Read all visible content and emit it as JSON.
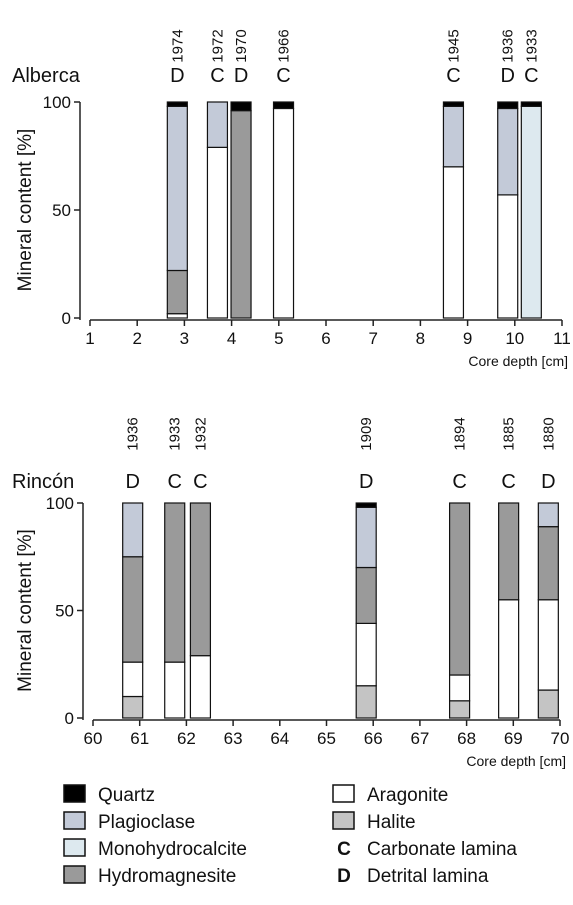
{
  "legend": {
    "items": [
      {
        "key": "quartz",
        "label": "Quartz",
        "color": "#000000"
      },
      {
        "key": "plagioclase",
        "label": "Plagioclase",
        "color": "#c3cad8"
      },
      {
        "key": "monohydrocalcite",
        "label": "Monohydrocalcite",
        "color": "#dde9ef"
      },
      {
        "key": "hydromagnesite",
        "label": "Hydromagnesite",
        "color": "#9a9a9a"
      },
      {
        "key": "aragonite",
        "label": "Aragonite",
        "color": "#ffffff"
      },
      {
        "key": "halite",
        "label": "Halite",
        "color": "#c4c4c4"
      }
    ],
    "lamina": [
      {
        "symbol": "C",
        "label": "Carbonate lamina"
      },
      {
        "symbol": "D",
        "label": "Detrital lamina"
      }
    ]
  },
  "chart_data": [
    {
      "type": "bar",
      "stacked": true,
      "site": "Alberca",
      "ylabel": "Mineral content [%]",
      "xlabel": "Core depth [cm]",
      "xlim": [
        1,
        11
      ],
      "ylim": [
        0,
        100
      ],
      "x_ticks": [
        1,
        2,
        3,
        4,
        5,
        6,
        7,
        8,
        9,
        10,
        11
      ],
      "y_ticks": [
        0,
        50,
        100
      ],
      "samples": [
        {
          "depth": 2.85,
          "year": "1974",
          "lamina": "D",
          "halite": 0,
          "aragonite": 2,
          "hydromagnesite": 20,
          "monohydrocalcite": 0,
          "plagioclase": 76,
          "quartz": 2
        },
        {
          "depth": 3.7,
          "year": "1972",
          "lamina": "C",
          "halite": 0,
          "aragonite": 79,
          "hydromagnesite": 0,
          "monohydrocalcite": 0,
          "plagioclase": 21,
          "quartz": 0
        },
        {
          "depth": 4.2,
          "year": "1970",
          "lamina": "D",
          "halite": 0,
          "aragonite": 0,
          "hydromagnesite": 96,
          "monohydrocalcite": 0,
          "plagioclase": 0,
          "quartz": 4
        },
        {
          "depth": 5.1,
          "year": "1966",
          "lamina": "C",
          "halite": 0,
          "aragonite": 97,
          "hydromagnesite": 0,
          "monohydrocalcite": 0,
          "plagioclase": 0,
          "quartz": 3
        },
        {
          "depth": 8.7,
          "year": "1945",
          "lamina": "C",
          "halite": 0,
          "aragonite": 70,
          "hydromagnesite": 0,
          "monohydrocalcite": 0,
          "plagioclase": 28,
          "quartz": 2
        },
        {
          "depth": 9.85,
          "year": "1936",
          "lamina": "D",
          "halite": 0,
          "aragonite": 57,
          "hydromagnesite": 0,
          "monohydrocalcite": 0,
          "plagioclase": 40,
          "quartz": 3
        },
        {
          "depth": 10.35,
          "year": "1933",
          "lamina": "C",
          "halite": 0,
          "aragonite": 0,
          "hydromagnesite": 0,
          "monohydrocalcite": 98,
          "plagioclase": 0,
          "quartz": 2
        }
      ]
    },
    {
      "type": "bar",
      "stacked": true,
      "site": "Rincón",
      "ylabel": "Mineral content [%]",
      "xlabel": "Core depth [cm]",
      "xlim": [
        60,
        70
      ],
      "ylim": [
        0,
        100
      ],
      "x_ticks": [
        60,
        61,
        62,
        63,
        64,
        65,
        66,
        67,
        68,
        69,
        70
      ],
      "y_ticks": [
        0,
        50,
        100
      ],
      "samples": [
        {
          "depth": 60.85,
          "year": "1936",
          "lamina": "D",
          "halite": 10,
          "aragonite": 16,
          "hydromagnesite": 49,
          "monohydrocalcite": 0,
          "plagioclase": 25,
          "quartz": 0
        },
        {
          "depth": 61.75,
          "year": "1933",
          "lamina": "C",
          "halite": 0,
          "aragonite": 26,
          "hydromagnesite": 74,
          "monohydrocalcite": 0,
          "plagioclase": 0,
          "quartz": 0
        },
        {
          "depth": 62.3,
          "year": "1932",
          "lamina": "C",
          "halite": 0,
          "aragonite": 29,
          "hydromagnesite": 71,
          "monohydrocalcite": 0,
          "plagioclase": 0,
          "quartz": 0
        },
        {
          "depth": 65.85,
          "year": "1909",
          "lamina": "D",
          "halite": 15,
          "aragonite": 29,
          "hydromagnesite": 26,
          "monohydrocalcite": 0,
          "plagioclase": 28,
          "quartz": 2
        },
        {
          "depth": 67.85,
          "year": "1894",
          "lamina": "C",
          "halite": 8,
          "aragonite": 12,
          "hydromagnesite": 80,
          "monohydrocalcite": 0,
          "plagioclase": 0,
          "quartz": 0
        },
        {
          "depth": 68.9,
          "year": "1885",
          "lamina": "C",
          "halite": 0,
          "aragonite": 55,
          "hydromagnesite": 45,
          "monohydrocalcite": 0,
          "plagioclase": 0,
          "quartz": 0
        },
        {
          "depth": 69.75,
          "year": "1880",
          "lamina": "D",
          "halite": 13,
          "aragonite": 42,
          "hydromagnesite": 34,
          "monohydrocalcite": 0,
          "plagioclase": 11,
          "quartz": 0
        }
      ]
    }
  ]
}
